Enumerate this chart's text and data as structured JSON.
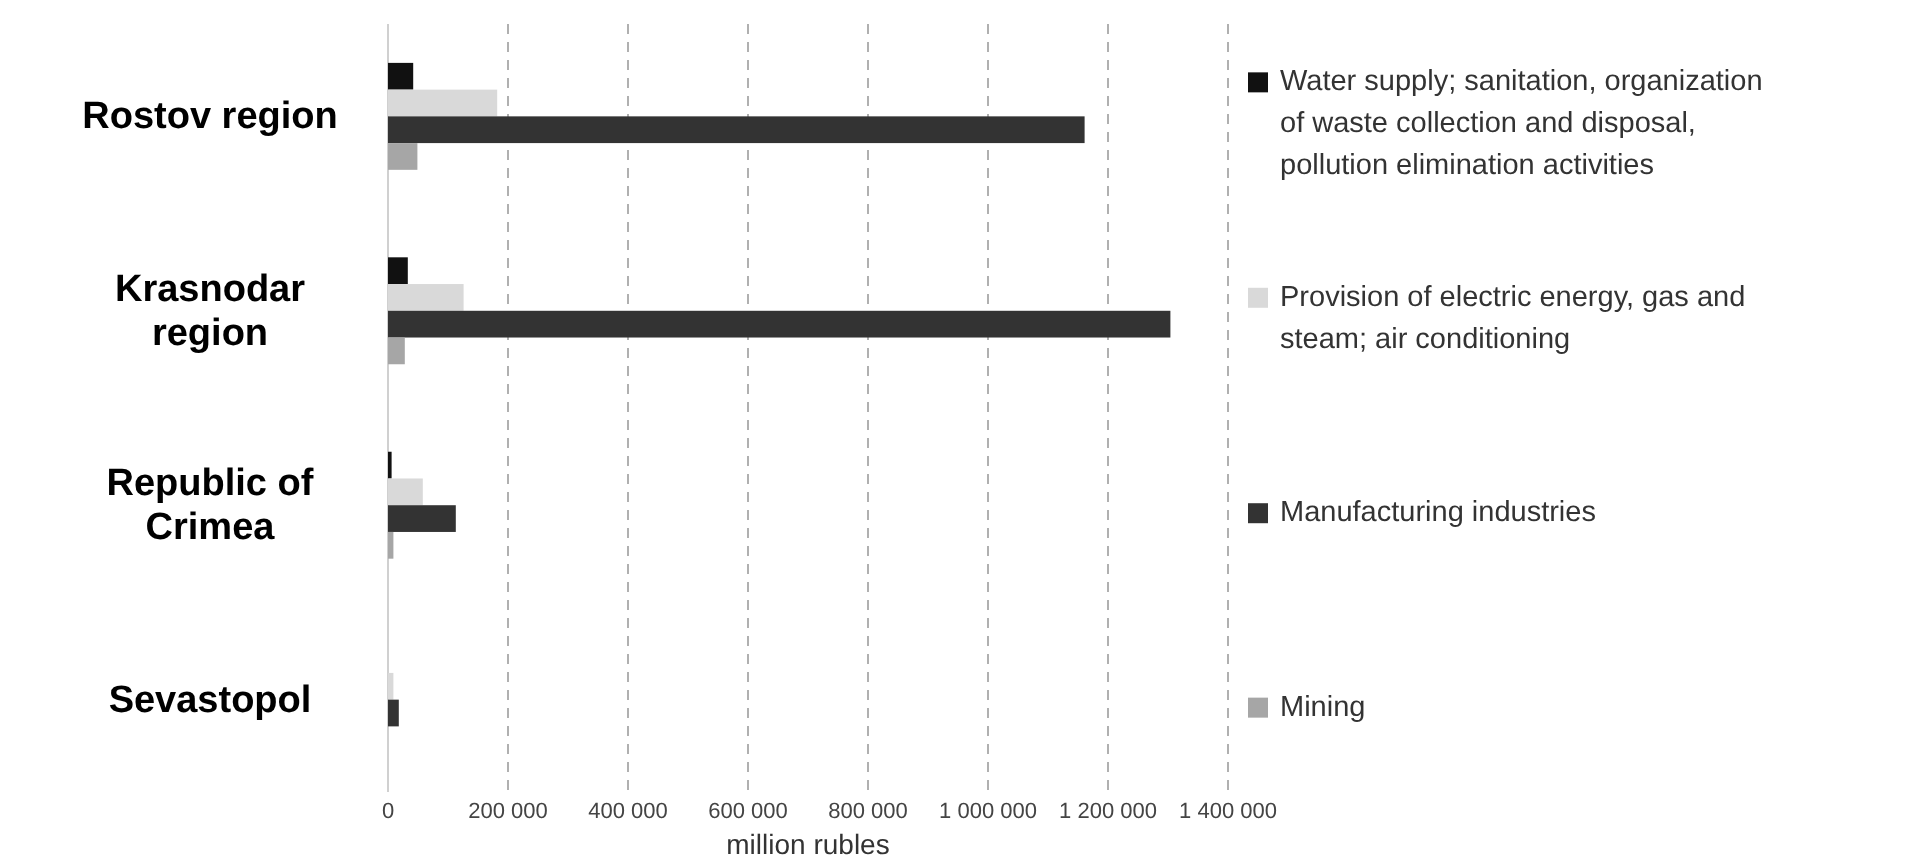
{
  "chart_data": {
    "type": "bar",
    "orientation": "horizontal",
    "xlabel": "million rubles",
    "categories": [
      "Rostov region",
      "Krasnodar region",
      "Republic of Crimea",
      "Sevastopol"
    ],
    "series": [
      {
        "name": "Water supply; sanitation, organization of waste collection and disposal, pollution elimination activities",
        "color": "#111111",
        "values": [
          42000,
          33000,
          6000,
          0
        ]
      },
      {
        "name": "Provision of electric energy, gas and steam; air conditioning",
        "color": "#d9d9d9",
        "values": [
          182000,
          126000,
          58000,
          9000
        ]
      },
      {
        "name": "Manufacturing industries",
        "color": "#333333",
        "values": [
          1161000,
          1304000,
          113000,
          18000
        ]
      },
      {
        "name": "Mining",
        "color": "#a6a6a6",
        "values": [
          49000,
          28000,
          9000,
          0
        ]
      }
    ],
    "xlim": [
      0,
      1400000
    ],
    "xticks": [
      0,
      {
        "value": 200000,
        "label": "200 000"
      },
      {
        "value": 400000,
        "label": "400 000"
      },
      {
        "value": 600000,
        "label": "600 000"
      },
      {
        "value": 800000,
        "label": "800 000"
      },
      {
        "value": 1000000,
        "label": "1 000 000"
      },
      {
        "value": 1200000,
        "label": "1 200 000"
      },
      {
        "value": 1400000,
        "label": "1 400 000"
      }
    ],
    "grid": "x",
    "legend": "right"
  }
}
